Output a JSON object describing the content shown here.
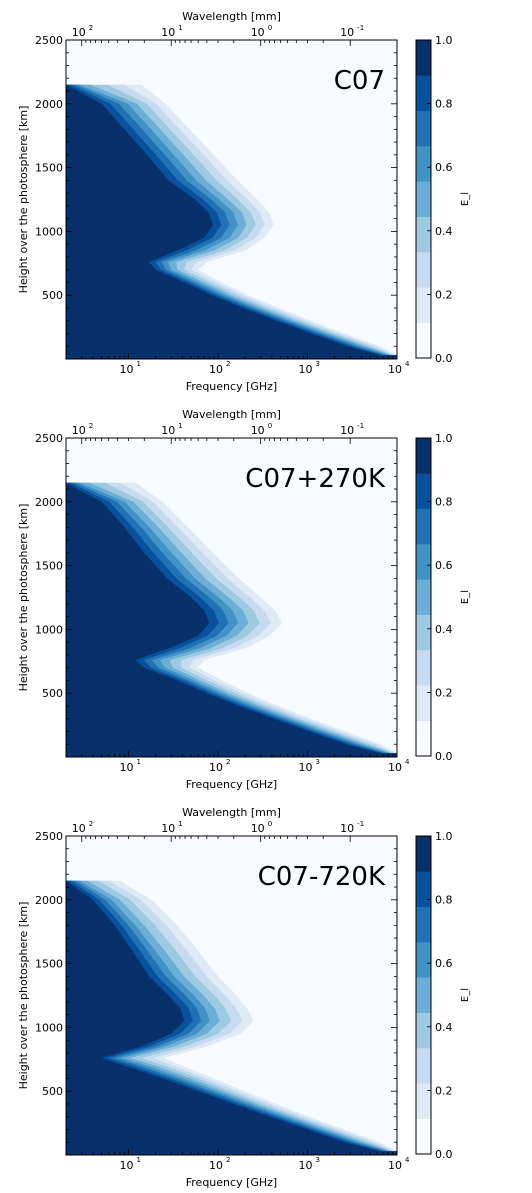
{
  "chart_data": [
    {
      "type": "contour",
      "title": "C07",
      "xlabel": "Frequency [GHz]",
      "x2label": "Wavelength [mm]",
      "ylabel": "Height over the photosphere [km]",
      "colorbar_label": "E_l",
      "xscale": "log",
      "xlim": [
        2,
        10000
      ],
      "ylim": [
        0,
        2500
      ],
      "x_ticks": [
        "10",
        "10",
        "10",
        "10"
      ],
      "x_tick_exponents": [
        "1",
        "2",
        "3",
        "4"
      ],
      "x_tick_values": [
        10,
        100,
        1000,
        10000
      ],
      "x2_ticks": [
        "10",
        "10",
        "10",
        "10"
      ],
      "x2_tick_exponents": [
        "2",
        "1",
        "0",
        "-1"
      ],
      "x2_tick_values_mm": [
        100,
        10,
        1,
        0.1
      ],
      "y_ticks": [
        "500",
        "1000",
        "1500",
        "2000",
        "2500"
      ],
      "y_tick_values": [
        500,
        1000,
        1500,
        2000,
        2500
      ],
      "colorbar_ticks": [
        "0.0",
        "0.2",
        "0.4",
        "0.6",
        "0.8",
        "1.0"
      ],
      "colorbar_range": [
        0,
        1
      ],
      "colors": [
        "#f7fbff",
        "#deebf7",
        "#c6dbef",
        "#9ecae1",
        "#6baed6",
        "#4292c6",
        "#2171b5",
        "#08519c",
        "#08306b"
      ],
      "contour_edge": [
        {
          "height": 2150,
          "freq": [
            2,
            3,
            14
          ]
        },
        {
          "height": 2000,
          "freq": [
            5,
            11,
            26
          ]
        },
        {
          "height": 1800,
          "freq": [
            9,
            20,
            48
          ]
        },
        {
          "height": 1600,
          "freq": [
            16,
            36,
            90
          ]
        },
        {
          "height": 1400,
          "freq": [
            28,
            64,
            165
          ]
        },
        {
          "height": 1250,
          "freq": [
            55,
            115,
            275
          ]
        },
        {
          "height": 1150,
          "freq": [
            78,
            165,
            370
          ]
        },
        {
          "height": 1050,
          "freq": [
            88,
            185,
            420
          ]
        },
        {
          "height": 950,
          "freq": [
            70,
            150,
            330
          ]
        },
        {
          "height": 850,
          "freq": [
            35,
            80,
            200
          ]
        },
        {
          "height": 760,
          "freq": [
            17,
            30,
            75
          ]
        },
        {
          "height": 700,
          "freq": [
            20,
            32,
            60
          ]
        },
        {
          "height": 600,
          "freq": [
            42,
            65,
            110
          ]
        },
        {
          "height": 500,
          "freq": [
            85,
            130,
            220
          ]
        },
        {
          "height": 400,
          "freq": [
            190,
            290,
            480
          ]
        },
        {
          "height": 300,
          "freq": [
            450,
            680,
            1100
          ]
        },
        {
          "height": 200,
          "freq": [
            1100,
            1650,
            2600
          ]
        },
        {
          "height": 100,
          "freq": [
            2800,
            4200,
            6500
          ]
        },
        {
          "height": 30,
          "freq": [
            6500,
            8500,
            10000
          ]
        }
      ]
    },
    {
      "type": "contour",
      "title": "C07+270K",
      "xlabel": "Frequency [GHz]",
      "x2label": "Wavelength [mm]",
      "ylabel": "Height over the photosphere [km]",
      "colorbar_label": "E_l",
      "xscale": "log",
      "xlim": [
        2,
        10000
      ],
      "ylim": [
        0,
        2500
      ],
      "x_ticks": [
        "10",
        "10",
        "10",
        "10"
      ],
      "x_tick_exponents": [
        "1",
        "2",
        "3",
        "4"
      ],
      "x_tick_values": [
        10,
        100,
        1000,
        10000
      ],
      "x2_ticks": [
        "10",
        "10",
        "10",
        "10"
      ],
      "x2_tick_exponents": [
        "2",
        "1",
        "0",
        "-1"
      ],
      "x2_tick_values_mm": [
        100,
        10,
        1,
        0.1
      ],
      "y_ticks": [
        "500",
        "1000",
        "1500",
        "2000",
        "2500"
      ],
      "y_tick_values": [
        500,
        1000,
        1500,
        2000,
        2500
      ],
      "colorbar_ticks": [
        "0.0",
        "0.2",
        "0.4",
        "0.6",
        "0.8",
        "1.0"
      ],
      "colorbar_range": [
        0,
        1
      ],
      "colors": [
        "#f7fbff",
        "#deebf7",
        "#c6dbef",
        "#9ecae1",
        "#6baed6",
        "#4292c6",
        "#2171b5",
        "#08519c",
        "#08306b"
      ],
      "contour_edge": [
        {
          "height": 2150,
          "freq": [
            2,
            3,
            12
          ]
        },
        {
          "height": 2000,
          "freq": [
            5,
            10,
            24
          ]
        },
        {
          "height": 1800,
          "freq": [
            9,
            19,
            46
          ]
        },
        {
          "height": 1600,
          "freq": [
            15,
            34,
            88
          ]
        },
        {
          "height": 1400,
          "freq": [
            27,
            62,
            170
          ]
        },
        {
          "height": 1250,
          "freq": [
            50,
            115,
            300
          ]
        },
        {
          "height": 1150,
          "freq": [
            70,
            165,
            430
          ]
        },
        {
          "height": 1050,
          "freq": [
            80,
            190,
            520
          ]
        },
        {
          "height": 950,
          "freq": [
            60,
            140,
            380
          ]
        },
        {
          "height": 850,
          "freq": [
            28,
            70,
            200
          ]
        },
        {
          "height": 760,
          "freq": [
            12,
            25,
            70
          ]
        },
        {
          "height": 700,
          "freq": [
            15,
            28,
            60
          ]
        },
        {
          "height": 600,
          "freq": [
            35,
            58,
            110
          ]
        },
        {
          "height": 500,
          "freq": [
            75,
            120,
            220
          ]
        },
        {
          "height": 400,
          "freq": [
            170,
            270,
            480
          ]
        },
        {
          "height": 300,
          "freq": [
            420,
            650,
            1100
          ]
        },
        {
          "height": 200,
          "freq": [
            1050,
            1600,
            2700
          ]
        },
        {
          "height": 100,
          "freq": [
            2700,
            4100,
            6500
          ]
        },
        {
          "height": 30,
          "freq": [
            6500,
            8500,
            10000
          ]
        }
      ]
    },
    {
      "type": "contour",
      "title": "C07-720K",
      "xlabel": "Frequency [GHz]",
      "x2label": "Wavelength [mm]",
      "ylabel": "Height over the photosphere [km]",
      "colorbar_label": "E_l",
      "xscale": "log",
      "xlim": [
        2,
        10000
      ],
      "ylim": [
        0,
        2500
      ],
      "x_ticks": [
        "10",
        "10",
        "10",
        "10"
      ],
      "x_tick_exponents": [
        "1",
        "2",
        "3",
        "4"
      ],
      "x_tick_values": [
        10,
        100,
        1000,
        10000
      ],
      "x2_ticks": [
        "10",
        "10",
        "10",
        "10"
      ],
      "x2_tick_exponents": [
        "2",
        "1",
        "0",
        "-1"
      ],
      "x2_tick_values_mm": [
        100,
        10,
        1,
        0.1
      ],
      "y_ticks": [
        "500",
        "1000",
        "1500",
        "2000",
        "2500"
      ],
      "y_tick_values": [
        500,
        1000,
        1500,
        2000,
        2500
      ],
      "colorbar_ticks": [
        "0.0",
        "0.2",
        "0.4",
        "0.6",
        "0.8",
        "1.0"
      ],
      "colorbar_range": [
        0,
        1
      ],
      "colors": [
        "#f7fbff",
        "#deebf7",
        "#c6dbef",
        "#9ecae1",
        "#6baed6",
        "#4292c6",
        "#2171b5",
        "#08519c",
        "#08306b"
      ],
      "contour_edge": [
        {
          "height": 2150,
          "freq": [
            2,
            3,
            8
          ]
        },
        {
          "height": 2000,
          "freq": [
            4,
            7,
            18
          ]
        },
        {
          "height": 1800,
          "freq": [
            7,
            13,
            35
          ]
        },
        {
          "height": 1600,
          "freq": [
            11,
            22,
            60
          ]
        },
        {
          "height": 1400,
          "freq": [
            17,
            36,
            100
          ]
        },
        {
          "height": 1250,
          "freq": [
            28,
            60,
            160
          ]
        },
        {
          "height": 1150,
          "freq": [
            38,
            80,
            210
          ]
        },
        {
          "height": 1050,
          "freq": [
            42,
            90,
            250
          ]
        },
        {
          "height": 950,
          "freq": [
            30,
            65,
            180
          ]
        },
        {
          "height": 850,
          "freq": [
            14,
            28,
            75
          ]
        },
        {
          "height": 760,
          "freq": [
            5,
            9,
            25
          ]
        },
        {
          "height": 700,
          "freq": [
            9,
            18,
            40
          ]
        },
        {
          "height": 600,
          "freq": [
            24,
            45,
            90
          ]
        },
        {
          "height": 500,
          "freq": [
            60,
            105,
            200
          ]
        },
        {
          "height": 400,
          "freq": [
            150,
            250,
            450
          ]
        },
        {
          "height": 300,
          "freq": [
            380,
            620,
            1050
          ]
        },
        {
          "height": 200,
          "freq": [
            1000,
            1550,
            2600
          ]
        },
        {
          "height": 100,
          "freq": [
            2600,
            4000,
            6400
          ]
        },
        {
          "height": 30,
          "freq": [
            6400,
            8400,
            10000
          ]
        }
      ]
    }
  ]
}
